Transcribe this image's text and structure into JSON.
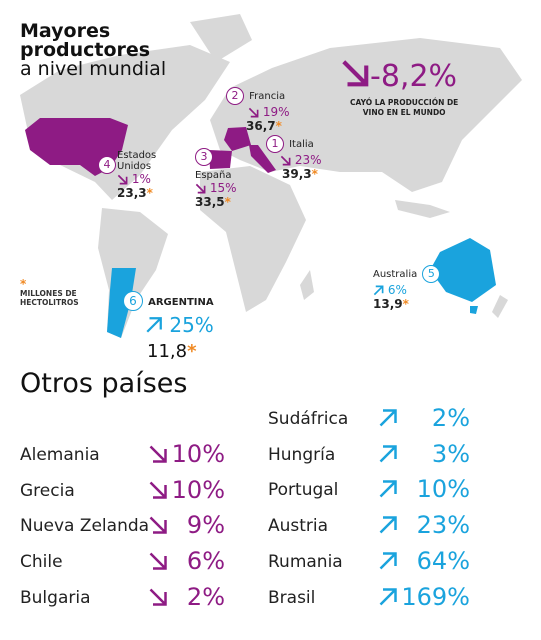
{
  "header": {
    "title_lines": [
      "Mayores",
      "productores",
      "a nivel mundial"
    ]
  },
  "world": {
    "change": "-8,2%",
    "caption_lines": [
      "CAYÓ LA PRODUCCIÓN DE",
      "VINO EN EL MUNDO"
    ]
  },
  "note": {
    "symbol": "*",
    "lines": [
      "MILLONES DE",
      "HECTOLITROS"
    ]
  },
  "producers": [
    {
      "rank": "1",
      "name_lines": [
        "Italia"
      ],
      "change": "23%",
      "volume": "39,3"
    },
    {
      "rank": "2",
      "name_lines": [
        "Francia"
      ],
      "change": "19%",
      "volume": "36,7"
    },
    {
      "rank": "3",
      "name_lines": [
        "España"
      ],
      "change": "15%",
      "volume": "33,5"
    },
    {
      "rank": "4",
      "name_lines": [
        "Estados",
        "Unidos"
      ],
      "change": "1%",
      "volume": "23,3"
    },
    {
      "rank": "5",
      "name_lines": [
        "Australia"
      ],
      "change": "6%",
      "volume": "13,9"
    },
    {
      "rank": "6",
      "name_lines": [
        "ARGENTINA"
      ],
      "change": "25%",
      "volume": "11,8"
    }
  ],
  "others": {
    "title": "Otros países",
    "falling": [
      {
        "name": "Alemania",
        "change": "10%"
      },
      {
        "name": "Grecia",
        "change": "10%"
      },
      {
        "name": "Nueva Zelanda",
        "change": "9%"
      },
      {
        "name": "Chile",
        "change": "6%"
      },
      {
        "name": "Bulgaria",
        "change": "2%"
      }
    ],
    "rising": [
      {
        "name": "Sudáfrica",
        "change": "2%"
      },
      {
        "name": "Hungría",
        "change": "3%"
      },
      {
        "name": "Portugal",
        "change": "10%"
      },
      {
        "name": "Austria",
        "change": "23%"
      },
      {
        "name": "Rumania",
        "change": "64%"
      },
      {
        "name": "Brasil",
        "change": "169%"
      }
    ]
  }
}
